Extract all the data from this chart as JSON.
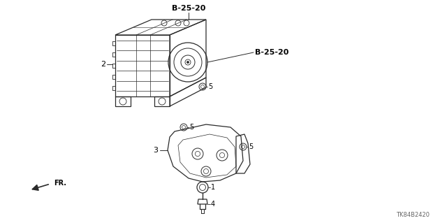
{
  "background_color": "#ffffff",
  "text_color": "#000000",
  "line_color": "#2a2a2a",
  "part_code_top": "B-25-20",
  "part_code_right": "B-25-20",
  "label_2": "2",
  "label_3": "3",
  "label_4": "4",
  "label_5a": "5",
  "label_5b": "5",
  "label_5c": "5",
  "label_1": "1",
  "fr_label": "FR.",
  "footer_code": "TK84B2420",
  "fig_width": 6.4,
  "fig_height": 3.19,
  "dpi": 100
}
